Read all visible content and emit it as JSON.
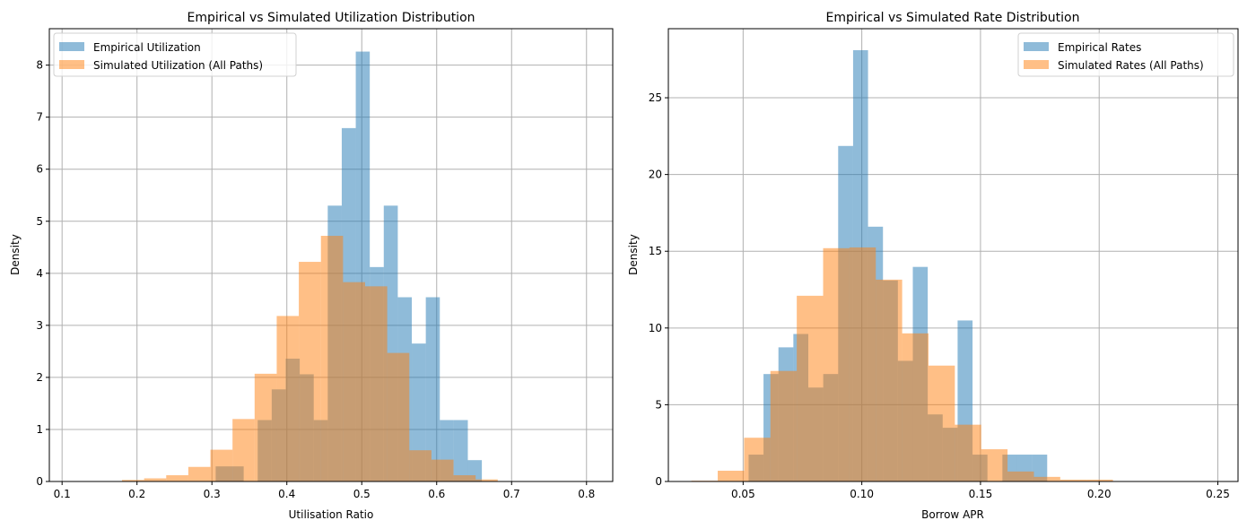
{
  "colors": {
    "empirical": "#1f77b4",
    "simulated": "#ff7f0e",
    "grid": "#b0b0b0"
  },
  "chart_data": [
    {
      "type": "histogram",
      "title": "Empirical vs Simulated Utilization Distribution",
      "xlabel": "Utilisation Ratio",
      "ylabel": "Density",
      "xlim": [
        0.083,
        0.835
      ],
      "ylim": [
        0,
        8.7
      ],
      "xticks": [
        0.1,
        0.2,
        0.3,
        0.4,
        0.5,
        0.6,
        0.7,
        0.8
      ],
      "xtick_labels": [
        "0.1",
        "0.2",
        "0.3",
        "0.4",
        "0.5",
        "0.6",
        "0.7",
        "0.8"
      ],
      "yticks": [
        0,
        1,
        2,
        3,
        4,
        5,
        6,
        7,
        8
      ],
      "ytick_labels": [
        "0",
        "1",
        "2",
        "3",
        "4",
        "5",
        "6",
        "7",
        "8"
      ],
      "grid": true,
      "legend_position": "top-left",
      "series": [
        {
          "name": "Empirical Utilization",
          "color_key": "empirical",
          "opacity": 0.5,
          "bin_start": 0.305,
          "bin_width": 0.0187,
          "values": [
            0.29,
            0.29,
            0,
            1.18,
            1.77,
            2.36,
            2.06,
            1.18,
            5.3,
            6.79,
            8.26,
            4.12,
            5.3,
            3.54,
            2.65,
            3.54,
            1.18,
            1.18,
            0.41
          ]
        },
        {
          "name": "Simulated Utilization (All Paths)",
          "color_key": "simulated",
          "opacity": 0.5,
          "bin_start": 0.18,
          "bin_width": 0.0295,
          "values": [
            0.03,
            0.06,
            0.12,
            0.28,
            0.61,
            1.2,
            2.07,
            3.18,
            4.22,
            4.72,
            3.83,
            3.75,
            2.47,
            0.6,
            0.42,
            0.12,
            0.04
          ]
        }
      ]
    },
    {
      "type": "histogram",
      "title": "Empirical vs Simulated Rate Distribution",
      "xlabel": "Borrow APR",
      "ylabel": "Density",
      "xlim": [
        0.0185,
        0.2585
      ],
      "ylim": [
        0,
        29.5
      ],
      "xticks": [
        0.05,
        0.1,
        0.15,
        0.2,
        0.25
      ],
      "xtick_labels": [
        "0.05",
        "0.10",
        "0.15",
        "0.20",
        "0.25"
      ],
      "yticks": [
        0,
        5,
        10,
        15,
        20,
        25
      ],
      "ytick_labels": [
        "0",
        "5",
        "10",
        "15",
        "20",
        "25"
      ],
      "grid": true,
      "legend_position": "top-right",
      "series": [
        {
          "name": "Empirical Rates",
          "color_key": "empirical",
          "opacity": 0.5,
          "bin_start": 0.0523,
          "bin_width": 0.00629,
          "values": [
            1.75,
            7.0,
            8.74,
            9.61,
            6.12,
            7.0,
            21.86,
            28.1,
            16.6,
            13.1,
            7.86,
            13.98,
            4.37,
            3.5,
            10.49,
            1.75,
            0.0,
            1.75,
            1.75,
            1.75
          ]
        },
        {
          "name": "Simulated Rates (All Paths)",
          "color_key": "simulated",
          "opacity": 0.5,
          "bin_start": 0.0282,
          "bin_width": 0.0111,
          "values": [
            0.05,
            0.7,
            2.85,
            7.2,
            12.1,
            15.2,
            15.25,
            13.15,
            9.65,
            7.55,
            3.7,
            2.1,
            0.65,
            0.3,
            0.12,
            0.12
          ]
        }
      ]
    }
  ]
}
